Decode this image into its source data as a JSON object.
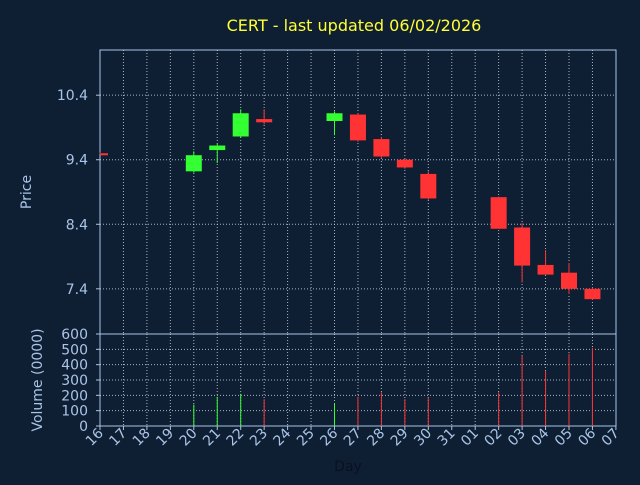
{
  "chart_data": {
    "type": "candlestick",
    "title": "CERT - last updated 06/02/2026",
    "ylabel_price": "Price",
    "ylabel_volume": "Volume (0000)",
    "xlabel": "Day",
    "price_ticks": [
      "10.4",
      "9.4",
      "8.4",
      "7.4"
    ],
    "price_ylim": [
      6.7,
      11.1
    ],
    "volume_ticks": [
      "600",
      "500",
      "400",
      "300",
      "200",
      "100",
      "0"
    ],
    "volume_ylim": [
      0,
      600
    ],
    "grid": true,
    "x_ticks": [
      "16",
      "17",
      "18",
      "19",
      "20",
      "21",
      "22",
      "23",
      "24",
      "25",
      "26",
      "27",
      "28",
      "29",
      "30",
      "31",
      "01",
      "02",
      "03",
      "04",
      "05",
      "06",
      "07"
    ],
    "candles": [
      {
        "day": "16",
        "open": 9.5,
        "high": 9.51,
        "low": 9.49,
        "close": 9.5,
        "volume": 0,
        "color": "#ff3333"
      },
      {
        "day": "20",
        "open": 9.22,
        "high": 9.53,
        "low": 9.2,
        "close": 9.47,
        "volume": 140,
        "color": "#33ff33"
      },
      {
        "day": "21",
        "open": 9.55,
        "high": 9.65,
        "low": 9.35,
        "close": 9.62,
        "volume": 190,
        "color": "#33ff33"
      },
      {
        "day": "22",
        "open": 9.76,
        "high": 10.18,
        "low": 9.74,
        "close": 10.12,
        "volume": 210,
        "color": "#33ff33"
      },
      {
        "day": "23",
        "open": 10.03,
        "high": 10.18,
        "low": 9.95,
        "close": 9.98,
        "volume": 175,
        "color": "#ff3333"
      },
      {
        "day": "26",
        "open": 10.0,
        "high": 10.15,
        "low": 9.78,
        "close": 10.12,
        "volume": 150,
        "color": "#33ff33"
      },
      {
        "day": "27",
        "open": 10.1,
        "high": 10.12,
        "low": 9.68,
        "close": 9.7,
        "volume": 190,
        "color": "#ff3333"
      },
      {
        "day": "28",
        "open": 9.72,
        "high": 9.75,
        "low": 9.42,
        "close": 9.45,
        "volume": 220,
        "color": "#ff3333"
      },
      {
        "day": "29",
        "open": 9.4,
        "high": 9.42,
        "low": 9.26,
        "close": 9.28,
        "volume": 175,
        "color": "#ff3333"
      },
      {
        "day": "30",
        "open": 9.18,
        "high": 9.22,
        "low": 8.78,
        "close": 8.8,
        "volume": 185,
        "color": "#ff3333"
      },
      {
        "day": "02",
        "open": 8.82,
        "high": 8.83,
        "low": 8.33,
        "close": 8.33,
        "volume": 220,
        "color": "#ff3333"
      },
      {
        "day": "03",
        "open": 8.35,
        "high": 8.42,
        "low": 7.5,
        "close": 7.76,
        "volume": 460,
        "color": "#ff3333"
      },
      {
        "day": "04",
        "open": 7.77,
        "high": 8.0,
        "low": 7.62,
        "close": 7.62,
        "volume": 360,
        "color": "#ff3333"
      },
      {
        "day": "05",
        "open": 7.65,
        "high": 7.8,
        "low": 7.32,
        "close": 7.4,
        "volume": 470,
        "color": "#ff3333"
      },
      {
        "day": "06",
        "open": 7.4,
        "high": 7.42,
        "low": 7.23,
        "close": 7.24,
        "volume": 510,
        "color": "#ff3333"
      }
    ]
  }
}
